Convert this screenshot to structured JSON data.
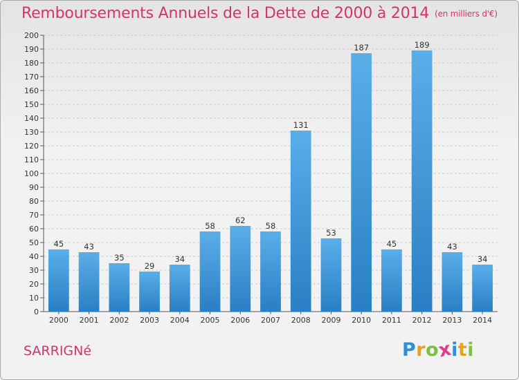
{
  "header": {
    "title": "Remboursements Annuels de la Dette de 2000 à 2014",
    "unit": "(en milliers d'€)"
  },
  "footer": {
    "commune": "SARRIGNé",
    "logo": [
      "P",
      "r",
      "o",
      "x",
      "i",
      "t",
      "i"
    ],
    "logo_colors": [
      "#2e8fd6",
      "#e8a020",
      "#7cc241",
      "#e03c8a",
      "#2e8fd6",
      "#e8a020",
      "#7cc241"
    ]
  },
  "colors": {
    "bar_light": "#5aaee8",
    "bar_dark": "#2a7fc4",
    "title": "#d6336c",
    "grid": "#bdbdbd"
  },
  "chart_data": {
    "type": "bar",
    "categories": [
      "2000",
      "2001",
      "2002",
      "2003",
      "2004",
      "2005",
      "2006",
      "2007",
      "2008",
      "2009",
      "2010",
      "2011",
      "2012",
      "2013",
      "2014"
    ],
    "values": [
      45,
      43,
      35,
      29,
      34,
      58,
      62,
      58,
      131,
      53,
      187,
      45,
      189,
      43,
      34
    ],
    "ylim": [
      0,
      200
    ],
    "ytick_step": 10,
    "grid": true,
    "data_labels": true
  }
}
